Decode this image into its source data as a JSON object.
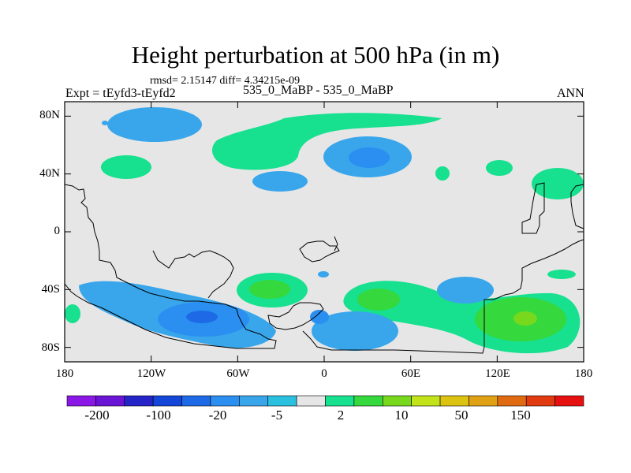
{
  "title": "Height perturbation at 500 hPa (in m)",
  "subtitle": "rmsd= 2.15147 diff= 4.34215e-09",
  "experiment_label": "Expt = tEyfd3-tEyfd2",
  "case_label": "535_0_MaBP - 535_0_MaBP",
  "season": "ANN",
  "y_axis": {
    "ticks": [
      "80N",
      "40N",
      "0",
      "40S",
      "80S"
    ],
    "values": [
      80,
      40,
      0,
      -40,
      -80
    ]
  },
  "x_axis": {
    "ticks": [
      "180",
      "120W",
      "60W",
      "0",
      "60E",
      "120E",
      "180"
    ],
    "values": [
      -180,
      -120,
      -60,
      0,
      60,
      120,
      180
    ]
  },
  "colorbar": {
    "colors": [
      "#8a17e6",
      "#6a14d6",
      "#2424c8",
      "#1446d9",
      "#1e6ae6",
      "#2a8ff0",
      "#39a6eb",
      "#2cc0e0",
      "#e6e6e6",
      "#17e08f",
      "#35d83d",
      "#78d81e",
      "#c2e21a",
      "#dcc312",
      "#e0a115",
      "#e06a12",
      "#e23a10",
      "#e61010"
    ],
    "labels": [
      "-200",
      "-100",
      "-20",
      "-5",
      "2",
      "10",
      "50",
      "150"
    ]
  },
  "map_colors": {
    "background": "#e6e6e6",
    "green": "#17e08f",
    "green_strong": "#35d83d",
    "yellowgreen": "#78d81e",
    "yellow": "#c2e21a",
    "cyan": "#2cc0e0",
    "blue_light": "#39a6eb",
    "blue": "#2a8ff0",
    "blue_deep": "#1e6ae6"
  }
}
